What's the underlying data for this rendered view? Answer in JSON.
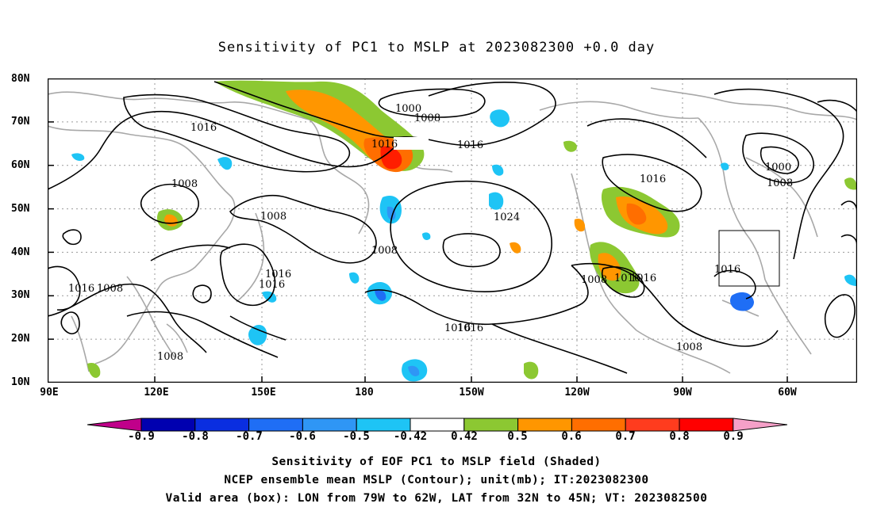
{
  "title": "Sensitivity of PC1 to MSLP at 2023082300 +0.0 day",
  "lat_labels": [
    "80N",
    "70N",
    "60N",
    "50N",
    "40N",
    "30N",
    "20N",
    "10N"
  ],
  "lon_labels": [
    "90E",
    "120E",
    "150E",
    "180",
    "150W",
    "120W",
    "90W",
    "60W"
  ],
  "contour_labels": [
    "1000",
    "1008",
    "1016",
    "1016",
    "1016",
    "1008",
    "1008",
    "1016",
    "1016",
    "1024",
    "1008",
    "1016",
    "1016",
    "1016",
    "1008",
    "1016",
    "1000",
    "1008",
    "1016",
    "1008",
    "1016",
    "1016",
    "1008",
    "1008"
  ],
  "colorbar": {
    "labels": [
      "-0.9",
      "-0.8",
      "-0.7",
      "-0.6",
      "-0.5",
      "-0.42",
      "0.42",
      "0.5",
      "0.6",
      "0.7",
      "0.8",
      "0.9"
    ],
    "colors": [
      "#c0008a",
      "#0000b0",
      "#0a2ee0",
      "#1f6ef5",
      "#2f96f5",
      "#1ec4f5",
      "#ffffff",
      "#8cc832",
      "#ff9600",
      "#ff6e00",
      "#ff3c1e",
      "#ff0000",
      "#f5a0c8"
    ]
  },
  "box_label": "1016",
  "captions": {
    "line1": "Sensitivity of EOF PC1 to MSLP field (Shaded)",
    "line2": "NCEP ensemble mean MSLP (Contour); unit(mb); IT:2023082300",
    "line3": "Valid area (box): LON from 79W to 62W, LAT from 32N to 45N; VT: 2023082500"
  }
}
